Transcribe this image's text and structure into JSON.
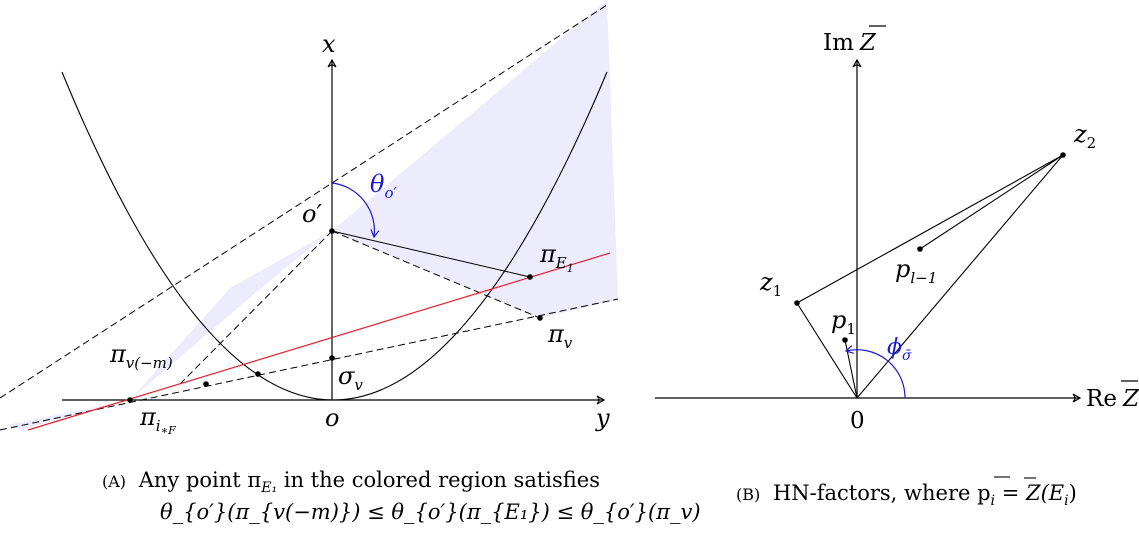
{
  "panel_a": {
    "axis_x_label": "x",
    "axis_y_label": "y",
    "origin_label": "o",
    "o_prime_label": "o′",
    "theta_label": "θ",
    "theta_sub": "o′",
    "pi_E1_label": "π",
    "pi_E1_sub": "E",
    "pi_E1_subsub": "1",
    "pi_v_label": "π",
    "pi_v_sub": "v",
    "pi_vm_label": "π",
    "pi_vm_sub": "v(−m)",
    "pi_iF_label": "π",
    "pi_iF_sub": "i",
    "pi_iF_subsub": "∗F",
    "sigma_label": "σ",
    "sigma_sub": "v",
    "colors": {
      "region": "#ececfc",
      "red_line": "#e8202a",
      "theta": "#1a1ad6"
    },
    "caption_tag": "(A)",
    "caption_line1": "Any point π",
    "caption_line1_sub": "E₁",
    "caption_line1_end": " in the colored region satisfies",
    "caption_line2": "θ_{o′}(π_{v(−m)}) ≤ θ_{o′}(π_{E₁}) ≤ θ_{o′}(π_v)"
  },
  "panel_b": {
    "im_label": "Im",
    "re_label": "Re",
    "z_bar": "Z",
    "zero_label": "0",
    "z1_label": "z",
    "z1_sub": "1",
    "z2_label": "z",
    "z2_sub": "2",
    "p1_label": "p",
    "p1_sub": "1",
    "pl_label": "p",
    "pl_sub": "l−1",
    "phi_label": "ϕ",
    "phi_sub": "σ̄",
    "colors": {
      "phi": "#1a1ad6"
    },
    "caption_tag": "(B)",
    "caption_text": "HN-factors, where p",
    "caption_sub": "i",
    "caption_eq": " = Z(E",
    "caption_eq_sub": "i",
    "caption_eq_end": ")"
  }
}
